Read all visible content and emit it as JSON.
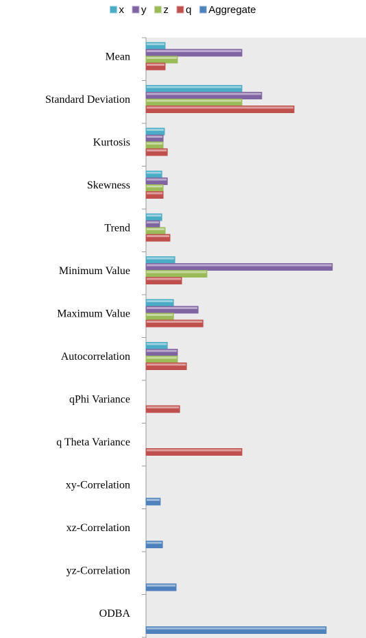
{
  "chart_data": {
    "type": "bar",
    "orientation": "horizontal",
    "categories": [
      "Mean",
      "Standard Deviation",
      "Kurtosis",
      "Skewness",
      "Trend",
      "Minimum Value",
      "Maximum Value",
      "Autocorrelation",
      "qPhi Variance",
      "q Theta Variance",
      "xy-Correlation",
      "xz-Correlation",
      "yz-Correlation",
      "ODBA"
    ],
    "series": [
      {
        "name": "x",
        "color": "#4bacc6",
        "values": [
          8.7,
          43.6,
          8.4,
          7.2,
          7.2,
          13.1,
          12.5,
          9.7,
          null,
          null,
          null,
          null,
          null,
          null
        ]
      },
      {
        "name": "y",
        "color": "#8064a2",
        "values": [
          43.6,
          52.6,
          7.8,
          9.7,
          6.2,
          84.7,
          23.7,
          14.3,
          null,
          null,
          null,
          null,
          null,
          null
        ]
      },
      {
        "name": "z",
        "color": "#9bbb59",
        "values": [
          14.3,
          43.6,
          7.8,
          7.8,
          8.7,
          27.7,
          12.5,
          14.3,
          null,
          null,
          null,
          null,
          null,
          null
        ]
      },
      {
        "name": "q",
        "color": "#c0504d",
        "values": [
          8.7,
          67.3,
          9.7,
          7.8,
          10.9,
          16.2,
          25.9,
          18.4,
          15.3,
          43.6,
          null,
          null,
          null,
          null
        ]
      },
      {
        "name": "Aggregate",
        "color": "#4f81bd",
        "values": [
          null,
          null,
          null,
          null,
          null,
          null,
          null,
          null,
          null,
          null,
          6.5,
          7.5,
          13.7,
          81.9
        ]
      }
    ],
    "xlim": [
      0,
      100
    ],
    "legend": "top"
  }
}
